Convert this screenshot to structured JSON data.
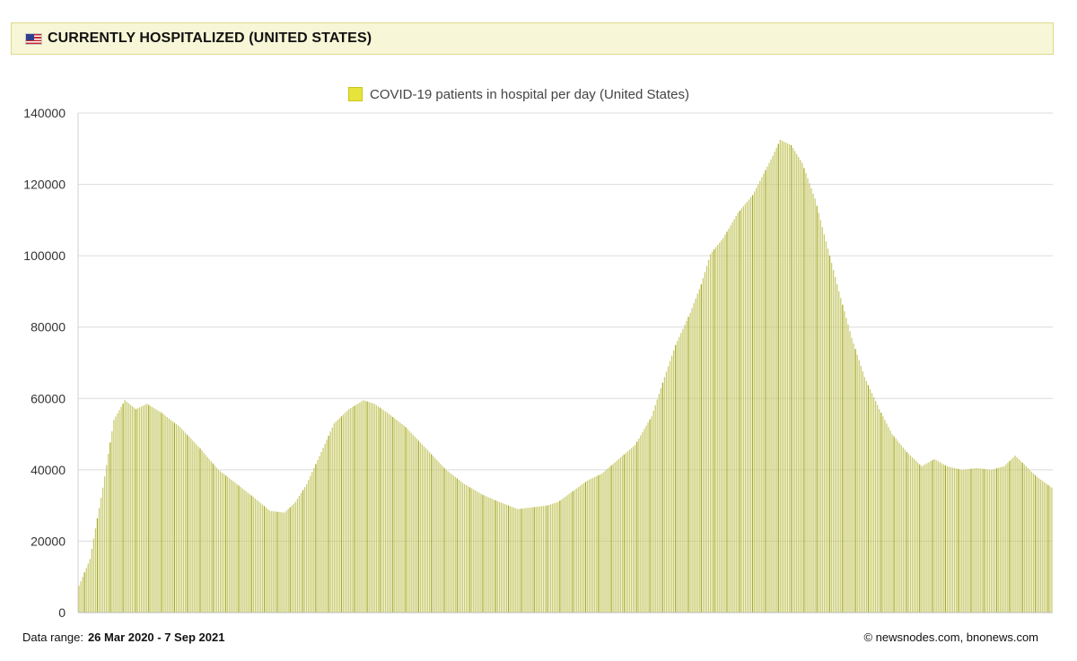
{
  "header": {
    "title": "CURRENTLY HOSPITALIZED (UNITED STATES)",
    "flag_icon": "us-flag-icon"
  },
  "footer": {
    "range_label": "Data range:",
    "range_value": "26 Mar 2020  -  7 Sep 2021",
    "copyright": "©  newsnodes.com, bnonews.com"
  },
  "colors": {
    "bar_fill": "#c9cb6e",
    "bar_accent": "#a6aa22",
    "legend_swatch": "#e6e33a",
    "header_bg": "#f7f6d6"
  },
  "chart_data": {
    "type": "bar",
    "title": "",
    "xlabel": "",
    "ylabel": "",
    "legend": {
      "position": "top-center",
      "entries": [
        "COVID-19 patients in hospital per day (United States)"
      ]
    },
    "grid": true,
    "ylim": [
      0,
      140000
    ],
    "yticks": [
      0,
      20000,
      40000,
      60000,
      80000,
      100000,
      120000,
      140000
    ],
    "x_start": "26 Mar 2020",
    "x_end": "7 Sep 2021",
    "series": [
      {
        "name": "COVID-19 patients in hospital per day (United States)",
        "keyframes": [
          [
            "2020-03-26",
            7500
          ],
          [
            "2020-04-01",
            15000
          ],
          [
            "2020-04-08",
            35000
          ],
          [
            "2020-04-14",
            54000
          ],
          [
            "2020-04-20",
            59500
          ],
          [
            "2020-04-26",
            57000
          ],
          [
            "2020-05-02",
            58500
          ],
          [
            "2020-05-10",
            56000
          ],
          [
            "2020-05-20",
            52000
          ],
          [
            "2020-05-31",
            46000
          ],
          [
            "2020-06-10",
            40000
          ],
          [
            "2020-06-20",
            36000
          ],
          [
            "2020-06-30",
            32000
          ],
          [
            "2020-07-08",
            28500
          ],
          [
            "2020-07-16",
            28000
          ],
          [
            "2020-07-22",
            31000
          ],
          [
            "2020-07-28",
            36000
          ],
          [
            "2020-08-05",
            45000
          ],
          [
            "2020-08-12",
            53000
          ],
          [
            "2020-08-20",
            57000
          ],
          [
            "2020-08-28",
            59500
          ],
          [
            "2020-09-03",
            58500
          ],
          [
            "2020-09-10",
            56000
          ],
          [
            "2020-09-20",
            52000
          ],
          [
            "2020-10-01",
            46000
          ],
          [
            "2020-10-12",
            40000
          ],
          [
            "2020-10-22",
            36000
          ],
          [
            "2020-11-01",
            33000
          ],
          [
            "2020-11-10",
            31000
          ],
          [
            "2020-11-20",
            29000
          ],
          [
            "2020-11-28",
            29500
          ],
          [
            "2020-12-06",
            30000
          ],
          [
            "2020-12-12",
            31000
          ],
          [
            "2020-12-20",
            34000
          ],
          [
            "2020-12-28",
            37000
          ],
          [
            "2021-01-05",
            39000
          ],
          [
            "2021-01-14",
            43000
          ],
          [
            "2021-01-23",
            47000
          ],
          [
            "2021-02-01",
            55000
          ],
          [
            "2021-02-08",
            66000
          ],
          [
            "2021-02-14",
            75000
          ],
          [
            "2021-02-22",
            84000
          ],
          [
            "2021-02-28",
            92000
          ],
          [
            "2021-03-05",
            100500
          ],
          [
            "2021-03-12",
            105000
          ],
          [
            "2021-03-20",
            112000
          ],
          [
            "2021-03-28",
            117000
          ],
          [
            "2021-04-03",
            123000
          ],
          [
            "2021-04-08",
            128000
          ],
          [
            "2021-04-12",
            132500
          ],
          [
            "2021-04-18",
            131000
          ],
          [
            "2021-04-24",
            126000
          ],
          [
            "2021-05-01",
            116000
          ],
          [
            "2021-05-07",
            104000
          ],
          [
            "2021-05-14",
            90000
          ],
          [
            "2021-05-21",
            77000
          ],
          [
            "2021-05-28",
            66000
          ],
          [
            "2021-06-05",
            57000
          ],
          [
            "2021-06-12",
            50000
          ],
          [
            "2021-06-20",
            45000
          ],
          [
            "2021-06-28",
            41000
          ],
          [
            "2021-07-05",
            43000
          ],
          [
            "2021-07-12",
            41000
          ],
          [
            "2021-07-20",
            40000
          ],
          [
            "2021-07-28",
            40500
          ],
          [
            "2021-08-05",
            40000
          ],
          [
            "2021-08-12",
            41000
          ],
          [
            "2021-08-18",
            44000
          ],
          [
            "2021-08-24",
            41000
          ],
          [
            "2021-08-30",
            38000
          ],
          [
            "2021-09-07",
            35000
          ]
        ]
      }
    ]
  }
}
